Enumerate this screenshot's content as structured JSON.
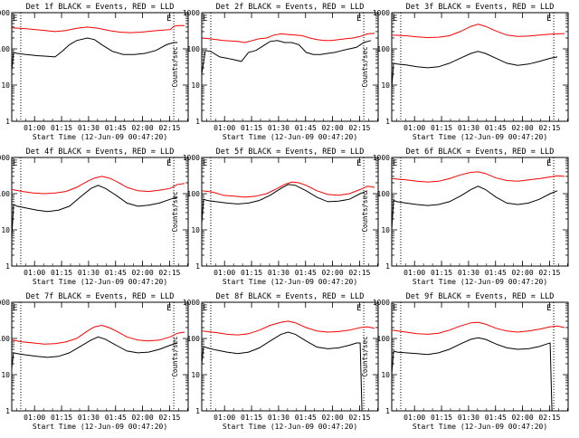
{
  "colors": {
    "events": "#000000",
    "lld": "#ff0000",
    "axis": "#000000",
    "background": "#ffffff"
  },
  "ylabel": "Counts/sec",
  "xlabel": "Start Time (12-Jun-09 00:47:20)",
  "xticks": [
    "01:00",
    "01:15",
    "01:30",
    "01:45",
    "02:00",
    "02:15"
  ],
  "yticks": [
    "1",
    "10",
    "100",
    "1000"
  ],
  "e_marker": "E",
  "chart_data": [
    {
      "type": "line",
      "title": "Det 1f BLACK = Events, RED = LLD",
      "x_unit": "minutes since 00:47:20",
      "xlim": [
        0,
        98
      ],
      "ylim": [
        1,
        1000
      ],
      "ylog": true,
      "vlines": [
        5,
        90
      ],
      "series": [
        {
          "name": "Events",
          "color": "black",
          "x": [
            0,
            1,
            3,
            8,
            14,
            20,
            24,
            28,
            32,
            36,
            42,
            46,
            50,
            56,
            62,
            68,
            74,
            80,
            86,
            90,
            92
          ],
          "y": [
            25,
            80,
            75,
            70,
            65,
            62,
            60,
            85,
            130,
            170,
            200,
            180,
            130,
            85,
            70,
            70,
            75,
            90,
            130,
            150,
            150
          ]
        },
        {
          "name": "LLD",
          "color": "red",
          "x": [
            0,
            8,
            16,
            24,
            30,
            36,
            42,
            48,
            54,
            60,
            66,
            72,
            78,
            84,
            88,
            90,
            92,
            96
          ],
          "y": [
            380,
            360,
            330,
            300,
            320,
            370,
            400,
            370,
            320,
            290,
            280,
            290,
            310,
            330,
            340,
            420,
            440,
            440
          ]
        }
      ]
    },
    {
      "type": "line",
      "title": "Det 2f BLACK = Events, RED = LLD",
      "x_unit": "minutes since 00:47:20",
      "xlim": [
        0,
        98
      ],
      "ylim": [
        1,
        1000
      ],
      "ylog": true,
      "vlines": [
        5,
        90
      ],
      "series": [
        {
          "name": "Events",
          "color": "black",
          "x": [
            0,
            2,
            5,
            10,
            14,
            18,
            22,
            26,
            30,
            34,
            38,
            42,
            46,
            50,
            54,
            58,
            62,
            66,
            70,
            74,
            78,
            82,
            86,
            90,
            94
          ],
          "y": [
            20,
            90,
            85,
            60,
            55,
            50,
            45,
            80,
            90,
            120,
            160,
            170,
            150,
            150,
            130,
            80,
            70,
            70,
            75,
            80,
            90,
            100,
            110,
            150,
            170
          ]
        },
        {
          "name": "LLD",
          "color": "red",
          "x": [
            0,
            4,
            8,
            12,
            16,
            20,
            24,
            28,
            32,
            36,
            40,
            44,
            48,
            52,
            56,
            60,
            64,
            68,
            72,
            76,
            80,
            84,
            88,
            92,
            96
          ],
          "y": [
            200,
            190,
            180,
            170,
            165,
            160,
            150,
            170,
            190,
            200,
            240,
            260,
            250,
            240,
            230,
            200,
            180,
            170,
            170,
            180,
            190,
            200,
            220,
            260,
            270
          ]
        }
      ]
    },
    {
      "type": "line",
      "title": "Det 3f BLACK = Events, RED = LLD",
      "x_unit": "minutes since 00:47:20",
      "xlim": [
        0,
        98
      ],
      "ylim": [
        1,
        1000
      ],
      "ylog": true,
      "vlines": [
        5,
        90
      ],
      "series": [
        {
          "name": "Events",
          "color": "black",
          "x": [
            0,
            1,
            3,
            8,
            14,
            20,
            26,
            32,
            38,
            44,
            48,
            52,
            58,
            64,
            70,
            76,
            82,
            88,
            92
          ],
          "y": [
            8,
            40,
            38,
            36,
            32,
            30,
            32,
            40,
            55,
            75,
            85,
            75,
            55,
            40,
            35,
            38,
            45,
            55,
            60
          ]
        },
        {
          "name": "LLD",
          "color": "red",
          "x": [
            0,
            8,
            14,
            20,
            26,
            32,
            38,
            44,
            48,
            52,
            58,
            64,
            70,
            76,
            82,
            88,
            92,
            96
          ],
          "y": [
            240,
            230,
            215,
            205,
            210,
            230,
            300,
            420,
            480,
            420,
            310,
            240,
            220,
            225,
            240,
            255,
            260,
            265
          ]
        }
      ]
    },
    {
      "type": "line",
      "title": "Det 4f BLACK = Events, RED = LLD",
      "x_unit": "minutes since 00:47:20",
      "xlim": [
        0,
        98
      ],
      "ylim": [
        1,
        1000
      ],
      "ylog": true,
      "vlines": [
        5,
        90
      ],
      "series": [
        {
          "name": "Events",
          "color": "black",
          "x": [
            0,
            1,
            3,
            8,
            14,
            20,
            26,
            32,
            38,
            44,
            48,
            52,
            58,
            64,
            70,
            76,
            82,
            88,
            92
          ],
          "y": [
            6,
            50,
            45,
            40,
            35,
            32,
            35,
            45,
            80,
            140,
            170,
            140,
            90,
            55,
            45,
            48,
            55,
            70,
            80
          ]
        },
        {
          "name": "LLD",
          "color": "red",
          "x": [
            0,
            6,
            12,
            18,
            24,
            30,
            36,
            42,
            46,
            50,
            54,
            58,
            64,
            70,
            76,
            82,
            88,
            92,
            96
          ],
          "y": [
            130,
            115,
            105,
            100,
            105,
            115,
            150,
            220,
            270,
            300,
            270,
            220,
            150,
            120,
            115,
            125,
            140,
            180,
            190
          ]
        }
      ]
    },
    {
      "type": "line",
      "title": "Det 5f BLACK = Events, RED = LLD",
      "x_unit": "minutes since 00:47:20",
      "xlim": [
        0,
        98
      ],
      "ylim": [
        1,
        1000
      ],
      "ylog": true,
      "vlines": [
        5,
        90
      ],
      "series": [
        {
          "name": "Events",
          "color": "black",
          "x": [
            0,
            1,
            3,
            8,
            14,
            20,
            26,
            32,
            38,
            44,
            48,
            52,
            58,
            64,
            70,
            76,
            82,
            88,
            92
          ],
          "y": [
            15,
            70,
            65,
            60,
            55,
            52,
            55,
            65,
            90,
            140,
            180,
            170,
            120,
            80,
            60,
            62,
            70,
            100,
            120
          ]
        },
        {
          "name": "LLD",
          "color": "red",
          "x": [
            0,
            6,
            12,
            18,
            24,
            30,
            36,
            42,
            46,
            50,
            54,
            58,
            64,
            70,
            76,
            82,
            88,
            92,
            96
          ],
          "y": [
            120,
            110,
            90,
            85,
            80,
            85,
            100,
            140,
            180,
            210,
            200,
            170,
            120,
            95,
            90,
            100,
            130,
            160,
            150
          ]
        }
      ]
    },
    {
      "type": "line",
      "title": "Det 6f BLACK = Events, RED = LLD",
      "x_unit": "minutes since 00:47:20",
      "xlim": [
        0,
        98
      ],
      "ylim": [
        1,
        1000
      ],
      "ylog": true,
      "vlines": [
        5,
        90
      ],
      "series": [
        {
          "name": "Events",
          "color": "black",
          "x": [
            0,
            1,
            3,
            8,
            14,
            20,
            26,
            32,
            38,
            44,
            48,
            52,
            58,
            64,
            70,
            76,
            82,
            88,
            92
          ],
          "y": [
            10,
            65,
            60,
            55,
            50,
            47,
            50,
            60,
            85,
            130,
            160,
            130,
            80,
            55,
            50,
            55,
            70,
            100,
            120
          ]
        },
        {
          "name": "LLD",
          "color": "red",
          "x": [
            0,
            8,
            14,
            20,
            26,
            32,
            38,
            44,
            48,
            52,
            58,
            64,
            70,
            76,
            82,
            88,
            92,
            96
          ],
          "y": [
            260,
            240,
            220,
            210,
            220,
            260,
            330,
            390,
            400,
            360,
            270,
            230,
            220,
            240,
            260,
            290,
            310,
            300
          ]
        }
      ]
    },
    {
      "type": "line",
      "title": "Det 7f BLACK = Events, RED = LLD",
      "x_unit": "minutes since 00:47:20",
      "xlim": [
        0,
        98
      ],
      "ylim": [
        1,
        1000
      ],
      "ylog": true,
      "vlines": [
        5,
        90
      ],
      "series": [
        {
          "name": "Events",
          "color": "black",
          "x": [
            0,
            1,
            3,
            8,
            14,
            20,
            26,
            32,
            38,
            44,
            48,
            52,
            58,
            64,
            70,
            76,
            82,
            88,
            92
          ],
          "y": [
            15,
            40,
            38,
            35,
            32,
            30,
            32,
            40,
            60,
            90,
            110,
            95,
            65,
            45,
            40,
            42,
            50,
            65,
            75
          ]
        },
        {
          "name": "LLD",
          "color": "red",
          "x": [
            0,
            6,
            12,
            18,
            24,
            30,
            36,
            42,
            46,
            50,
            54,
            58,
            64,
            70,
            76,
            82,
            88,
            92,
            96
          ],
          "y": [
            90,
            80,
            75,
            70,
            72,
            80,
            100,
            160,
            210,
            230,
            200,
            160,
            110,
            90,
            85,
            90,
            110,
            140,
            150
          ]
        }
      ]
    },
    {
      "type": "line",
      "title": "Det 8f BLACK = Events, RED = LLD",
      "x_unit": "minutes since 00:47:20",
      "xlim": [
        0,
        98
      ],
      "ylim": [
        1,
        1000
      ],
      "ylog": true,
      "vlines": [
        5,
        90
      ],
      "series": [
        {
          "name": "Events",
          "color": "black",
          "x": [
            0,
            1,
            3,
            8,
            14,
            20,
            26,
            32,
            38,
            44,
            48,
            52,
            58,
            64,
            70,
            76,
            82,
            86,
            88,
            89,
            90
          ],
          "y": [
            20,
            60,
            55,
            48,
            42,
            38,
            42,
            55,
            85,
            130,
            150,
            130,
            85,
            58,
            52,
            55,
            65,
            75,
            75,
            1,
            1
          ]
        },
        {
          "name": "LLD",
          "color": "red",
          "x": [
            0,
            8,
            14,
            20,
            26,
            32,
            38,
            44,
            48,
            52,
            58,
            64,
            70,
            76,
            82,
            88,
            92,
            96
          ],
          "y": [
            160,
            145,
            130,
            125,
            135,
            170,
            230,
            280,
            300,
            270,
            200,
            160,
            150,
            155,
            170,
            200,
            210,
            190
          ]
        }
      ]
    },
    {
      "type": "line",
      "title": "Det 9f BLACK = Events, RED = LLD",
      "x_unit": "minutes since 00:47:20",
      "xlim": [
        0,
        98
      ],
      "ylim": [
        1,
        1000
      ],
      "ylog": true,
      "vlines": [
        5,
        90
      ],
      "series": [
        {
          "name": "Events",
          "color": "black",
          "x": [
            0,
            1,
            3,
            8,
            14,
            20,
            26,
            32,
            38,
            44,
            48,
            52,
            58,
            64,
            70,
            76,
            82,
            86,
            88,
            89,
            90
          ],
          "y": [
            10,
            45,
            42,
            40,
            38,
            36,
            40,
            50,
            70,
            95,
            105,
            95,
            70,
            55,
            50,
            52,
            60,
            70,
            75,
            1,
            1
          ]
        },
        {
          "name": "LLD",
          "color": "red",
          "x": [
            0,
            8,
            14,
            20,
            26,
            32,
            38,
            44,
            48,
            52,
            58,
            64,
            70,
            76,
            82,
            88,
            92,
            96
          ],
          "y": [
            170,
            150,
            135,
            130,
            140,
            170,
            220,
            270,
            280,
            250,
            190,
            160,
            150,
            160,
            180,
            210,
            220,
            200
          ]
        }
      ]
    }
  ]
}
